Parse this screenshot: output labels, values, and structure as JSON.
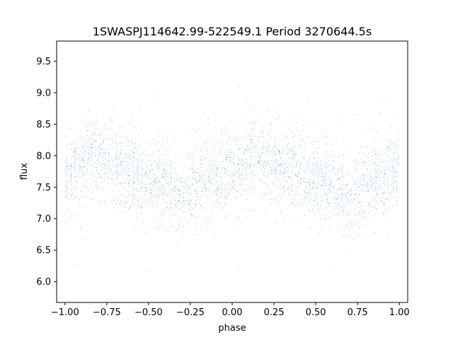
{
  "chart_data": {
    "type": "scatter",
    "title": "1SWASPJ114642.99-522549.1 Period 3270644.5s",
    "xlabel": "phase",
    "ylabel": "flux",
    "xlim": [
      -1.05,
      1.05
    ],
    "ylim": [
      5.67,
      9.82
    ],
    "xticks": [
      -1.0,
      -0.75,
      -0.5,
      -0.25,
      0.0,
      0.25,
      0.5,
      0.75,
      1.0
    ],
    "xtick_labels": [
      "−1.00",
      "−0.75",
      "−0.50",
      "−0.25",
      "0.00",
      "0.25",
      "0.50",
      "0.75",
      "1.00"
    ],
    "yticks": [
      6.0,
      6.5,
      7.0,
      7.5,
      8.0,
      8.5,
      9.0,
      9.5
    ],
    "ytick_labels": [
      "6.0",
      "6.5",
      "7.0",
      "7.5",
      "8.0",
      "8.5",
      "9.0",
      "9.5"
    ],
    "grid": false,
    "marker_color": "#1f77b4",
    "series": [
      {
        "points_summary": "dense phase-folded light curve, phase -1 to 1, flux roughly 6.0 to 9.6",
        "profile_phase": [
          0.0,
          0.1,
          0.15,
          0.2,
          0.3,
          0.4,
          0.5,
          0.6,
          0.7,
          0.8,
          0.9,
          1.0
        ],
        "profile_flux": [
          7.65,
          7.9,
          8.05,
          7.95,
          7.85,
          7.7,
          7.6,
          7.55,
          7.3,
          7.6,
          7.65,
          7.8
        ]
      }
    ]
  }
}
